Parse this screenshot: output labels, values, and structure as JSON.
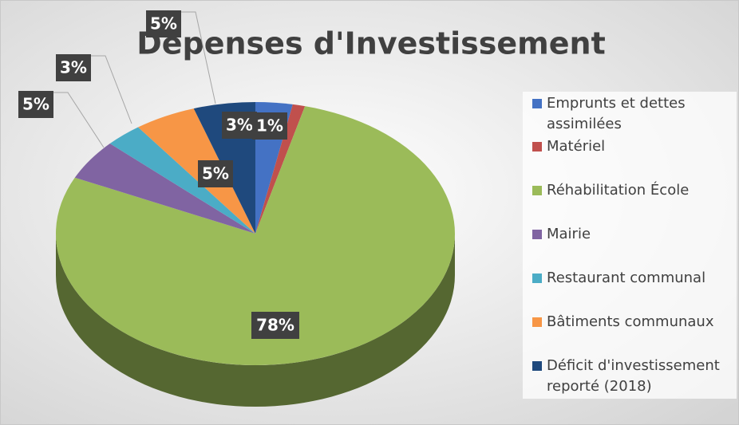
{
  "chart_data": {
    "type": "pie",
    "title": "Dépenses d'Investissement",
    "categories": [
      "Emprunts et dettes assimilées",
      "Matériel",
      "Réhabilitation École",
      "Mairie",
      "Restaurant communal",
      "Bâtiments communaux",
      "Déficit d'investissement reporté (2018)"
    ],
    "values": [
      3,
      1,
      78,
      5,
      3,
      5,
      5
    ],
    "value_labels": [
      "3%",
      "1%",
      "78%",
      "5%",
      "3%",
      "5%",
      "5%"
    ],
    "colors": [
      "#4472c4",
      "#c0504d",
      "#9bbb59",
      "#8064a2",
      "#4bacc6",
      "#f79646",
      "#1f497d"
    ],
    "legend": "right"
  }
}
